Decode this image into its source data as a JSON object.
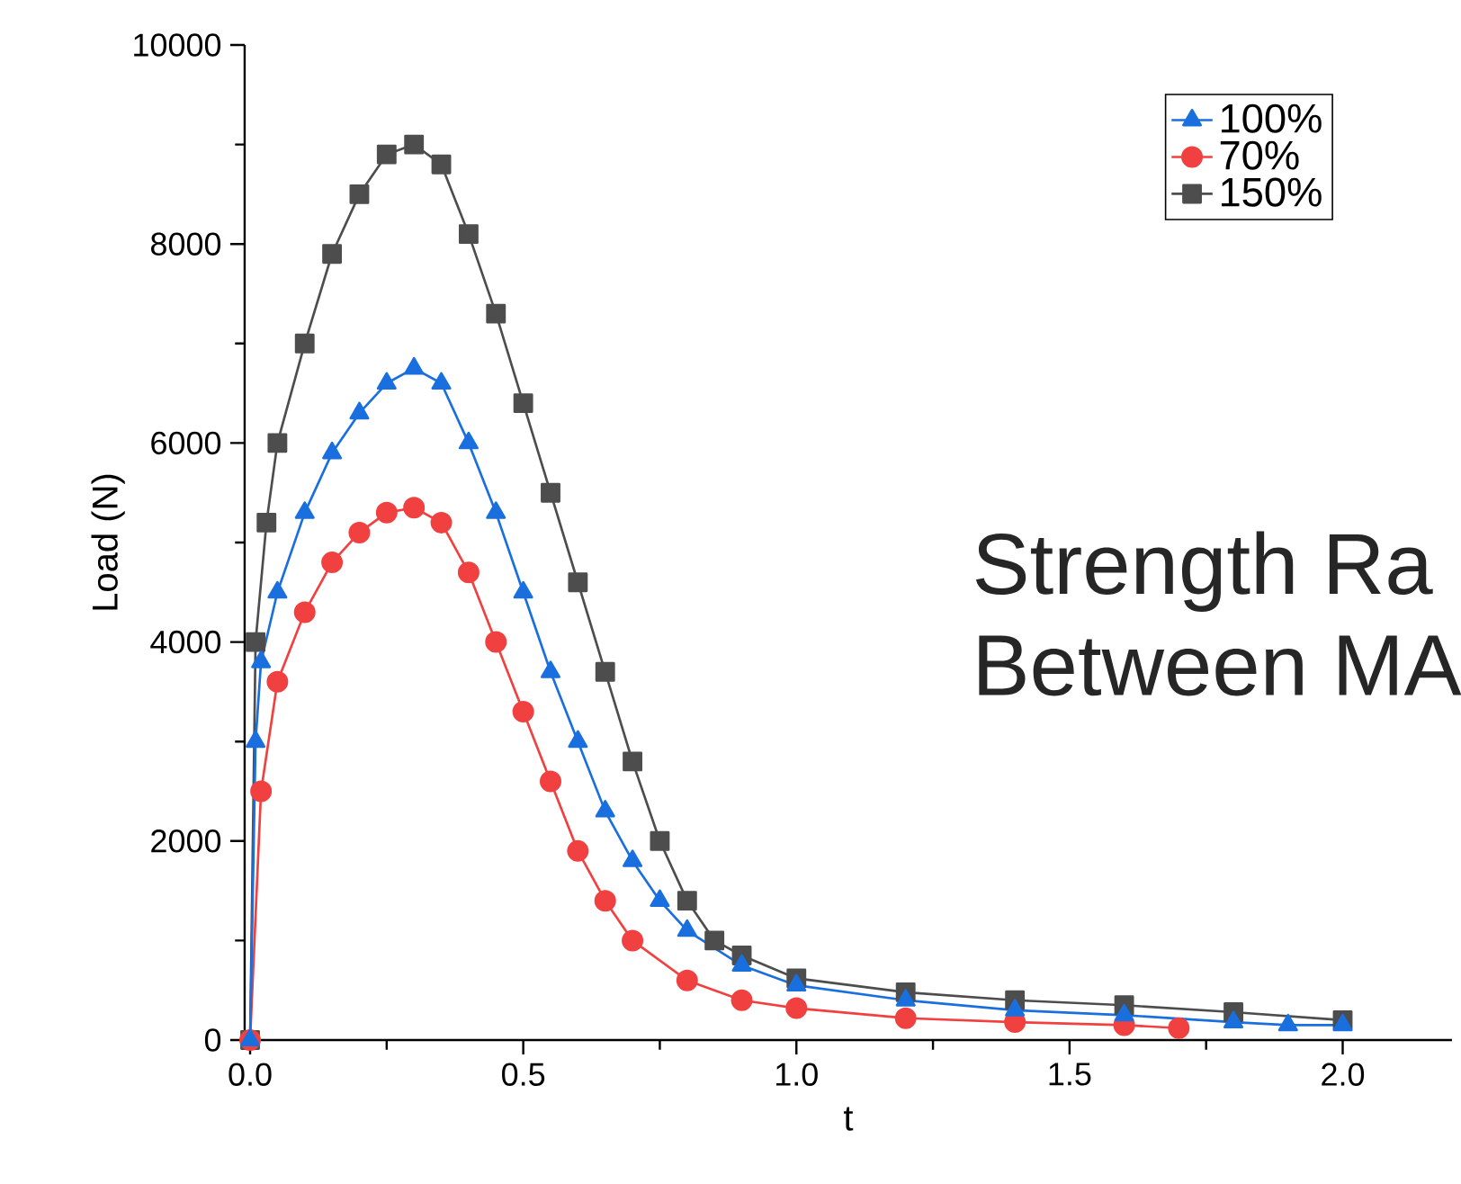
{
  "chart_data": {
    "type": "line",
    "xlabel": "t",
    "ylabel": "Load (N)",
    "xlim": [
      -0.01,
      2.2
    ],
    "ylim": [
      0,
      10000
    ],
    "xticks": [
      {
        "value": 0,
        "label": "0.0"
      },
      {
        "value": 0.5,
        "label": "0.5"
      },
      {
        "value": 1,
        "label": "1.0"
      },
      {
        "value": 1.5,
        "label": "1.5"
      },
      {
        "value": 2,
        "label": "2.0"
      }
    ],
    "yticks": [
      0,
      2000,
      4000,
      6000,
      8000,
      10000
    ],
    "grid": false,
    "legend": "top right",
    "line_style": "solid",
    "annotations": [
      "Strength Ra",
      "Between MA"
    ],
    "series": [
      {
        "name": "100%",
        "color": "#1a6fdf",
        "marker": "triangle",
        "x": [
          0,
          0.01,
          0.02,
          0.05,
          0.1,
          0.15,
          0.2,
          0.25,
          0.3,
          0.35,
          0.4,
          0.45,
          0.5,
          0.55,
          0.6,
          0.65,
          0.7,
          0.75,
          0.8,
          0.9,
          1.0,
          1.2,
          1.4,
          1.6,
          1.8,
          1.9,
          2.0
        ],
        "values": [
          0,
          3000,
          3800,
          4500,
          5300,
          5900,
          6300,
          6600,
          6750,
          6600,
          6000,
          5300,
          4500,
          3700,
          3000,
          2300,
          1800,
          1400,
          1100,
          750,
          550,
          400,
          300,
          250,
          180,
          150,
          150
        ]
      },
      {
        "name": "70%",
        "color": "#f14040",
        "marker": "circle",
        "x": [
          0,
          0.02,
          0.05,
          0.1,
          0.15,
          0.2,
          0.25,
          0.3,
          0.35,
          0.4,
          0.45,
          0.5,
          0.55,
          0.6,
          0.65,
          0.7,
          0.8,
          0.9,
          1.0,
          1.2,
          1.4,
          1.6,
          1.7
        ],
        "values": [
          0,
          2500,
          3600,
          4300,
          4800,
          5100,
          5300,
          5350,
          5200,
          4700,
          4000,
          3300,
          2600,
          1900,
          1400,
          1000,
          600,
          400,
          320,
          220,
          180,
          150,
          120
        ]
      },
      {
        "name": "150%",
        "color": "#4d4d4d",
        "marker": "square",
        "x": [
          0,
          0.01,
          0.03,
          0.05,
          0.1,
          0.15,
          0.2,
          0.25,
          0.3,
          0.35,
          0.4,
          0.45,
          0.5,
          0.55,
          0.6,
          0.65,
          0.7,
          0.75,
          0.8,
          0.85,
          0.9,
          1.0,
          1.2,
          1.4,
          1.6,
          1.8,
          2.0
        ],
        "values": [
          0,
          4000,
          5200,
          6000,
          7000,
          7900,
          8500,
          8900,
          9000,
          8800,
          8100,
          7300,
          6400,
          5500,
          4600,
          3700,
          2800,
          2000,
          1400,
          1000,
          850,
          620,
          480,
          400,
          350,
          280,
          200
        ]
      }
    ]
  }
}
